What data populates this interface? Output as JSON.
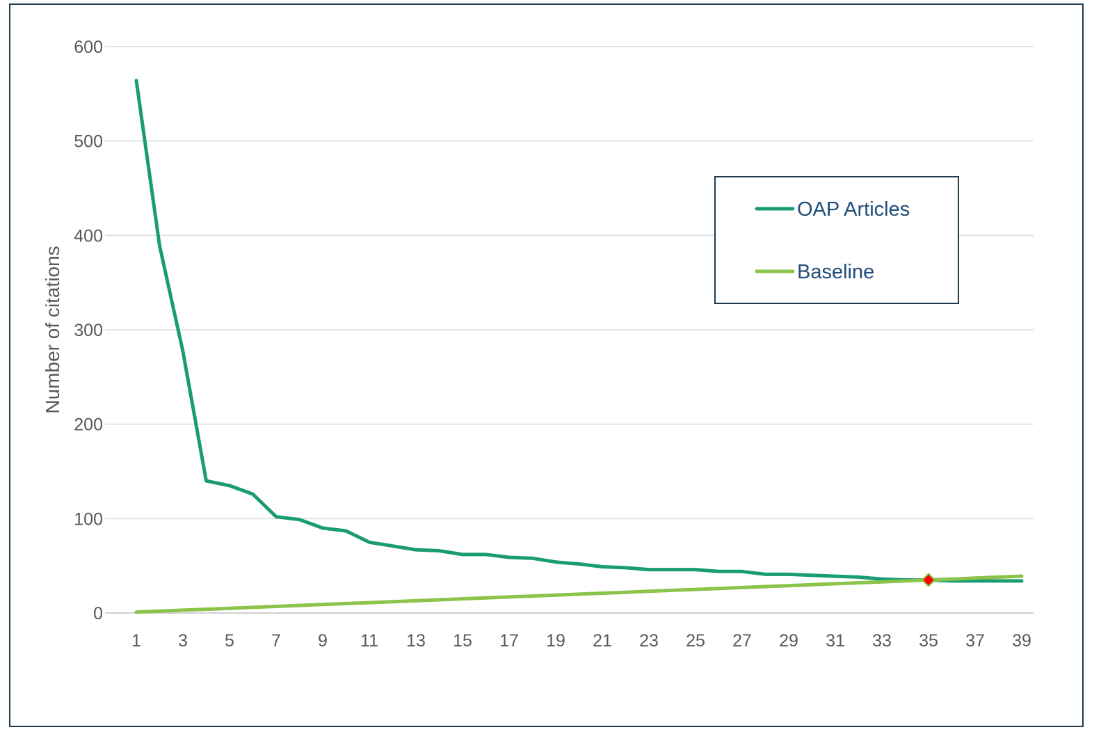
{
  "chart_data": {
    "type": "line",
    "ylabel": "Number of citations",
    "xlabel": "",
    "title": "",
    "ylim": [
      0,
      600
    ],
    "yticks": [
      0,
      100,
      200,
      300,
      400,
      500,
      600
    ],
    "xticks": [
      1,
      3,
      5,
      7,
      9,
      11,
      13,
      15,
      17,
      19,
      21,
      23,
      25,
      27,
      29,
      31,
      33,
      35,
      37,
      39
    ],
    "x": [
      1,
      2,
      3,
      4,
      5,
      6,
      7,
      8,
      9,
      10,
      11,
      12,
      13,
      14,
      15,
      16,
      17,
      18,
      19,
      20,
      21,
      22,
      23,
      24,
      25,
      26,
      27,
      28,
      29,
      30,
      31,
      32,
      33,
      34,
      35,
      36,
      37,
      38,
      39
    ],
    "grid": true,
    "legend_position": "upper-right",
    "series": [
      {
        "name": "OAP Articles",
        "color": "#1a9c73",
        "values": [
          564,
          389,
          277,
          140,
          135,
          126,
          102,
          99,
          90,
          87,
          75,
          71,
          67,
          66,
          62,
          62,
          59,
          58,
          54,
          52,
          49,
          48,
          46,
          46,
          46,
          44,
          44,
          41,
          41,
          40,
          39,
          38,
          36,
          35,
          35,
          34,
          34,
          34,
          34
        ]
      },
      {
        "name": "Baseline",
        "color": "#8cc34a",
        "values": [
          1,
          2,
          3,
          4,
          5,
          6,
          7,
          8,
          9,
          10,
          11,
          12,
          13,
          14,
          15,
          16,
          17,
          18,
          19,
          20,
          21,
          22,
          23,
          24,
          25,
          26,
          27,
          28,
          29,
          30,
          31,
          32,
          33,
          34,
          35,
          36,
          37,
          38,
          39
        ]
      }
    ],
    "marker": {
      "x": 35,
      "y": 35,
      "shape": "diamond",
      "color": "#ff0000",
      "stroke": "#8cc34a"
    }
  }
}
